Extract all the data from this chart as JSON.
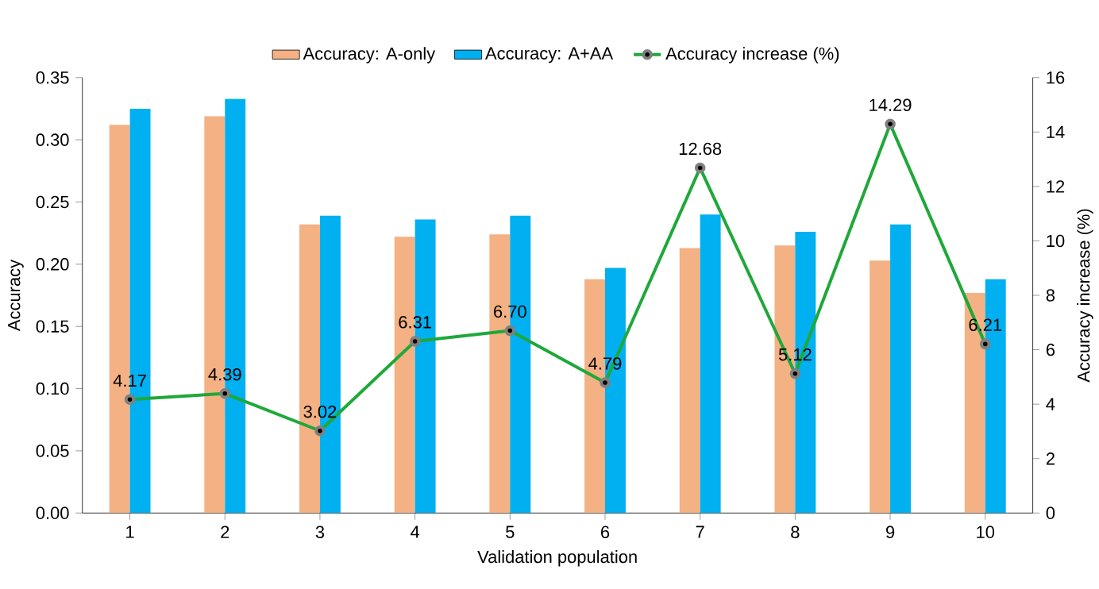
{
  "chart_data": {
    "type": "bar",
    "xlabel": "Validation population",
    "ylabel": "Accuracy",
    "y2label": "Accuracy increase (%)",
    "categories": [
      "1",
      "2",
      "3",
      "4",
      "5",
      "6",
      "7",
      "8",
      "9",
      "10"
    ],
    "series": [
      {
        "name": "Accuracy: A-only",
        "color": "#f4b183",
        "values": [
          0.312,
          0.319,
          0.232,
          0.222,
          0.224,
          0.188,
          0.213,
          0.215,
          0.203,
          0.177
        ]
      },
      {
        "name": "Accuracy: A+AA",
        "color": "#00b0f0",
        "values": [
          0.325,
          0.333,
          0.239,
          0.236,
          0.239,
          0.197,
          0.24,
          0.226,
          0.232,
          0.188
        ]
      },
      {
        "name": "Accuracy increase (%)",
        "type": "line",
        "axis": "y2",
        "marker": "circle",
        "color": "#1fa83a",
        "values": [
          4.17,
          4.39,
          3.02,
          6.31,
          6.7,
          4.79,
          12.68,
          5.12,
          14.29,
          6.21
        ],
        "value_labels": [
          "4.17",
          "4.39",
          "3.02",
          "6.31",
          "6.70",
          "4.79",
          "12.68",
          "5.12",
          "14.29",
          "6.21"
        ]
      }
    ],
    "ylim": [
      0,
      0.35
    ],
    "yticks": [
      {
        "value": 0,
        "label": "0.00"
      },
      {
        "value": 0.05,
        "label": "0.05"
      },
      {
        "value": 0.1,
        "label": "0.10"
      },
      {
        "value": 0.15,
        "label": "0.15"
      },
      {
        "value": 0.2,
        "label": "0.20"
      },
      {
        "value": 0.25,
        "label": "0.25"
      },
      {
        "value": 0.3,
        "label": "0.30"
      },
      {
        "value": 0.35,
        "label": "0.35"
      }
    ],
    "y2lim": [
      0,
      16
    ],
    "y2ticks": [
      0,
      2,
      4,
      6,
      8,
      10,
      12,
      14,
      16
    ],
    "legend": "top"
  }
}
